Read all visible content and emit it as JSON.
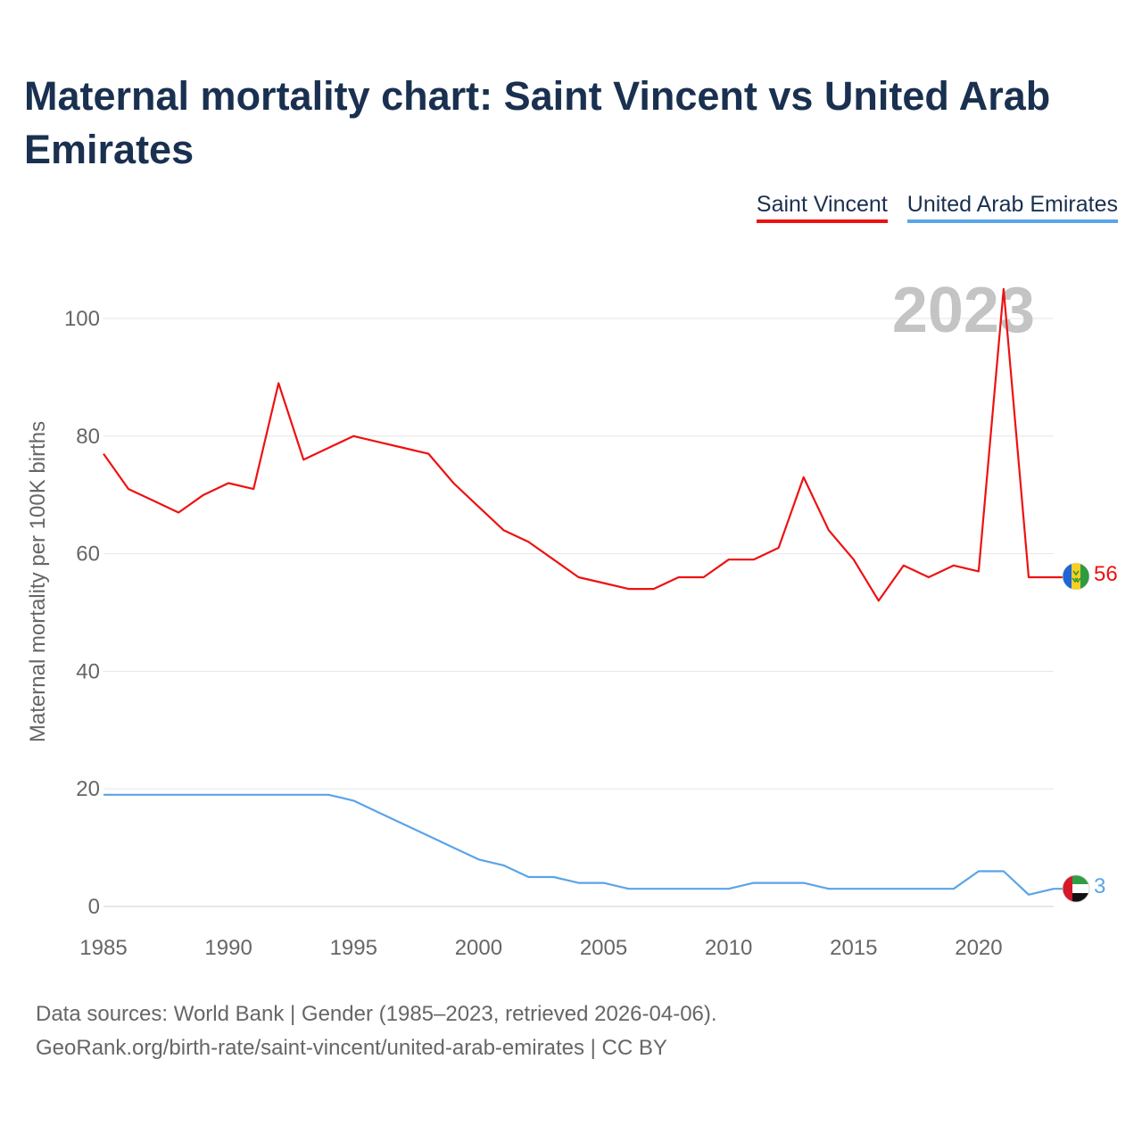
{
  "title": "Maternal mortality chart: Saint Vincent vs United Arab Emirates",
  "legend": {
    "series_a": "Saint Vincent",
    "series_b": "United Arab Emirates"
  },
  "chart_data": {
    "type": "line",
    "title": "Maternal mortality chart: Saint Vincent vs United Arab Emirates",
    "ylabel": "Maternal mortality per 100K births",
    "xlabel": "",
    "year_overlay": "2023",
    "xlim": [
      1985,
      2023
    ],
    "ylim": [
      0,
      100
    ],
    "x_ticks": [
      1985,
      1990,
      1995,
      2000,
      2005,
      2010,
      2015,
      2020
    ],
    "y_ticks": [
      0,
      20,
      40,
      60,
      80,
      100
    ],
    "x": [
      1985,
      1986,
      1987,
      1988,
      1989,
      1990,
      1991,
      1992,
      1993,
      1994,
      1995,
      1996,
      1997,
      1998,
      1999,
      2000,
      2001,
      2002,
      2003,
      2004,
      2005,
      2006,
      2007,
      2008,
      2009,
      2010,
      2011,
      2012,
      2013,
      2014,
      2015,
      2016,
      2017,
      2018,
      2019,
      2020,
      2021,
      2022,
      2023
    ],
    "series": [
      {
        "name": "Saint Vincent",
        "color": "#ee1111",
        "end_label": "56",
        "flag": "saint-vincent-flag-icon",
        "values": [
          77,
          71,
          69,
          67,
          70,
          72,
          71,
          89,
          76,
          78,
          80,
          79,
          78,
          77,
          72,
          68,
          64,
          62,
          59,
          56,
          55,
          54,
          54,
          56,
          56,
          59,
          59,
          61,
          73,
          64,
          59,
          52,
          58,
          56,
          58,
          57,
          105,
          56,
          56
        ]
      },
      {
        "name": "United Arab Emirates",
        "color": "#5aa4e8",
        "end_label": "3",
        "flag": "uae-flag-icon",
        "values": [
          19,
          19,
          19,
          19,
          19,
          19,
          19,
          19,
          19,
          19,
          18,
          16,
          14,
          12,
          10,
          8,
          7,
          5,
          5,
          4,
          4,
          3,
          3,
          3,
          3,
          3,
          4,
          4,
          4,
          3,
          3,
          3,
          3,
          3,
          3,
          6,
          6,
          2,
          3
        ]
      }
    ]
  },
  "footer": {
    "line1": "Data sources: World Bank | Gender (1985–2023, retrieved 2026-04-06).",
    "line2": "GeoRank.org/birth-rate/saint-vincent/united-arab-emirates | CC BY"
  }
}
